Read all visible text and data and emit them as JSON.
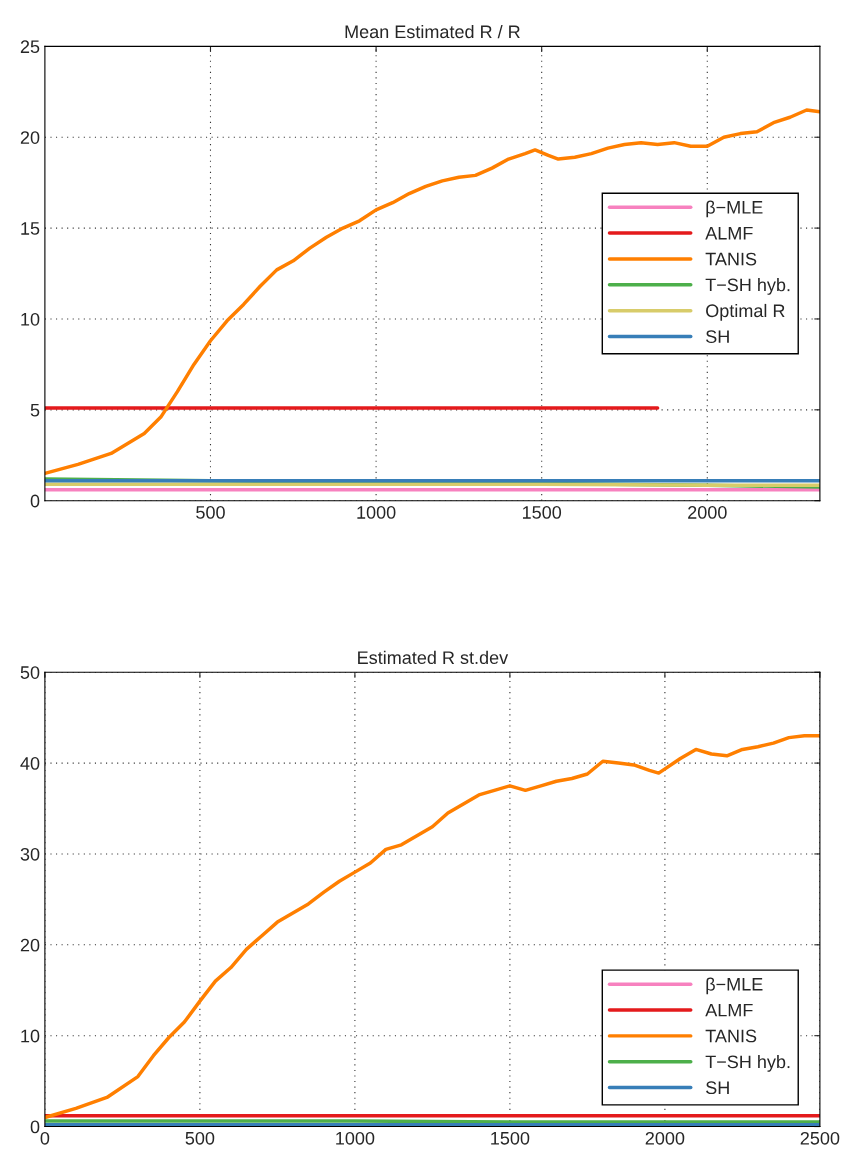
{
  "chart_data": [
    {
      "type": "line",
      "title": "Mean Estimated R / R",
      "xlim": [
        0,
        2340
      ],
      "xticks": [
        500,
        1000,
        1500,
        2000
      ],
      "ylim": [
        0,
        25
      ],
      "yticks": [
        0,
        5,
        10,
        15,
        20,
        25
      ],
      "grid": true,
      "legend": "right",
      "series": [
        {
          "name": "β−MLE",
          "color": "#f781bf",
          "x": [
            0,
            500,
            1000,
            1500,
            2000,
            2340
          ],
          "values": [
            0.6,
            0.6,
            0.6,
            0.6,
            0.6,
            0.6
          ]
        },
        {
          "name": "ALMF",
          "color": "#e41a1c",
          "x": [
            0,
            500,
            1000,
            1500,
            1850
          ],
          "values": [
            5.1,
            5.1,
            5.1,
            5.1,
            5.1
          ]
        },
        {
          "name": "TANIS",
          "color": "#ff7f00",
          "x": [
            0,
            100,
            200,
            300,
            350,
            400,
            450,
            500,
            550,
            600,
            650,
            700,
            750,
            800,
            850,
            900,
            950,
            1000,
            1050,
            1100,
            1150,
            1200,
            1250,
            1300,
            1350,
            1400,
            1450,
            1480,
            1520,
            1550,
            1600,
            1650,
            1700,
            1750,
            1800,
            1850,
            1900,
            1950,
            2000,
            2050,
            2100,
            2150,
            2200,
            2250,
            2300,
            2340
          ],
          "values": [
            1.5,
            2.0,
            2.6,
            3.7,
            4.6,
            6.0,
            7.5,
            8.8,
            9.9,
            10.8,
            11.8,
            12.7,
            13.2,
            13.9,
            14.5,
            15.0,
            15.4,
            16.0,
            16.4,
            16.9,
            17.3,
            17.6,
            17.8,
            17.9,
            18.3,
            18.8,
            19.1,
            19.3,
            19.0,
            18.8,
            18.9,
            19.1,
            19.4,
            19.6,
            19.7,
            19.6,
            19.7,
            19.5,
            19.5,
            20.0,
            20.2,
            20.3,
            20.8,
            21.1,
            21.5,
            21.4
          ]
        },
        {
          "name": "T−SH hyb.",
          "color": "#4daf4a",
          "x": [
            0,
            500,
            1000,
            1500,
            2000,
            2340
          ],
          "values": [
            1.2,
            1.1,
            1.0,
            0.95,
            0.85,
            0.75
          ]
        },
        {
          "name": "Optimal R",
          "color": "#d8cc6a",
          "x": [
            0,
            500,
            1000,
            1500,
            2000,
            2340
          ],
          "values": [
            0.9,
            0.9,
            0.9,
            0.9,
            0.85,
            0.85
          ]
        },
        {
          "name": "SH",
          "color": "#377eb8",
          "x": [
            0,
            500,
            1000,
            1500,
            2000,
            2340
          ],
          "values": [
            1.1,
            1.1,
            1.1,
            1.1,
            1.1,
            1.1
          ]
        }
      ]
    },
    {
      "type": "line",
      "title": "Estimated R st.dev",
      "xlim": [
        0,
        2500
      ],
      "xticks": [
        0,
        500,
        1000,
        1500,
        2000,
        2500
      ],
      "ylim": [
        0,
        50
      ],
      "yticks": [
        0,
        10,
        20,
        30,
        40,
        50
      ],
      "grid": true,
      "legend": "bottom right",
      "series": [
        {
          "name": "β−MLE",
          "color": "#f781bf"
        },
        {
          "name": "ALMF",
          "color": "#e41a1c",
          "x": [
            0,
            500,
            1000,
            1500,
            2000,
            2500
          ],
          "values": [
            1.2,
            1.2,
            1.2,
            1.2,
            1.2,
            1.2
          ]
        },
        {
          "name": "TANIS",
          "color": "#ff7f00",
          "x": [
            0,
            100,
            200,
            300,
            350,
            400,
            450,
            500,
            550,
            600,
            650,
            700,
            750,
            800,
            850,
            900,
            950,
            1000,
            1050,
            1100,
            1150,
            1200,
            1250,
            1300,
            1350,
            1400,
            1450,
            1500,
            1550,
            1600,
            1650,
            1700,
            1750,
            1800,
            1850,
            1900,
            1950,
            1980,
            2050,
            2100,
            2150,
            2200,
            2250,
            2300,
            2350,
            2400,
            2450,
            2500
          ],
          "values": [
            1.0,
            2.0,
            3.2,
            5.5,
            7.8,
            9.8,
            11.5,
            13.8,
            16.0,
            17.5,
            19.5,
            21.0,
            22.5,
            23.5,
            24.5,
            25.8,
            27.0,
            28.0,
            29.0,
            30.5,
            31.0,
            32.0,
            33.0,
            34.5,
            35.5,
            36.5,
            37.0,
            37.5,
            37.0,
            37.5,
            38.0,
            38.3,
            38.8,
            40.2,
            40.0,
            39.8,
            39.2,
            38.9,
            40.5,
            41.5,
            41.0,
            40.8,
            41.5,
            41.8,
            42.2,
            42.8,
            43.0,
            43.0
          ]
        },
        {
          "name": "T−SH hyb.",
          "color": "#4daf4a",
          "x": [
            0,
            500,
            1000,
            1500,
            2000,
            2500
          ],
          "values": [
            0.6,
            0.6,
            0.6,
            0.5,
            0.5,
            0.5
          ]
        },
        {
          "name": "SH",
          "color": "#377eb8",
          "x": [
            0,
            500,
            1000,
            1500,
            2000,
            2500
          ],
          "values": [
            0.2,
            0.2,
            0.2,
            0.2,
            0.2,
            0.2
          ]
        }
      ]
    }
  ]
}
